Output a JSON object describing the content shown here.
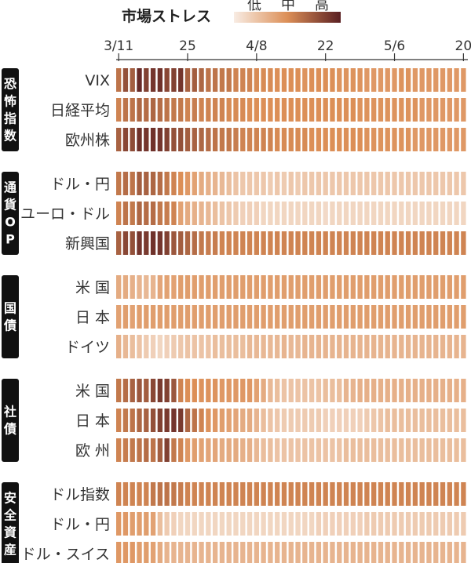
{
  "chart_data": {
    "type": "heatmap",
    "legend": {
      "title": "市場ストレス",
      "labels": [
        "低",
        "中",
        "高"
      ],
      "colors": [
        "#f8ece3",
        "#dc8f57",
        "#5a1f22"
      ]
    },
    "x_ticks": [
      {
        "label": "3/11",
        "index": 0
      },
      {
        "label": "25",
        "index": 10
      },
      {
        "label": "4/8",
        "index": 20
      },
      {
        "label": "22",
        "index": 30
      },
      {
        "label": "5/6",
        "index": 40
      },
      {
        "label": "20",
        "index": 50
      }
    ],
    "days": 51,
    "value_scale": "0 = 低, 0.5 = 中, 1 = 高 (estimated)",
    "groups": [
      {
        "label": "恐怖指数",
        "rows": [
          {
            "label": "VIX",
            "values": [
              0.62,
              0.78,
              0.72,
              0.95,
              0.85,
              0.9,
              0.92,
              0.82,
              0.85,
              0.9,
              0.7,
              0.72,
              0.68,
              0.62,
              0.62,
              0.6,
              0.6,
              0.55,
              0.55,
              0.55,
              0.52,
              0.52,
              0.52,
              0.5,
              0.5,
              0.5,
              0.5,
              0.48,
              0.5,
              0.5,
              0.5,
              0.5,
              0.48,
              0.48,
              0.48,
              0.48,
              0.45,
              0.45,
              0.45,
              0.45,
              0.45,
              0.48,
              0.48,
              0.45,
              0.45,
              0.45,
              0.45,
              0.45,
              0.45,
              0.45,
              0.45
            ]
          },
          {
            "label": "日経平均",
            "values": [
              0.55,
              0.62,
              0.62,
              0.68,
              0.65,
              0.68,
              0.65,
              0.62,
              0.6,
              0.6,
              0.55,
              0.58,
              0.55,
              0.55,
              0.55,
              0.55,
              0.52,
              0.52,
              0.52,
              0.5,
              0.5,
              0.5,
              0.5,
              0.5,
              0.5,
              0.5,
              0.5,
              0.5,
              0.5,
              0.5,
              0.5,
              0.5,
              0.5,
              0.5,
              0.5,
              0.48,
              0.48,
              0.48,
              0.48,
              0.48,
              0.48,
              0.48,
              0.48,
              0.48,
              0.45,
              0.45,
              0.45,
              0.45,
              0.45,
              0.45,
              0.45
            ]
          },
          {
            "label": "欧州株",
            "values": [
              0.7,
              0.82,
              0.8,
              0.92,
              0.9,
              0.92,
              0.9,
              0.85,
              0.78,
              0.78,
              0.72,
              0.7,
              0.68,
              0.65,
              0.62,
              0.6,
              0.6,
              0.58,
              0.55,
              0.55,
              0.55,
              0.55,
              0.55,
              0.52,
              0.52,
              0.52,
              0.52,
              0.52,
              0.5,
              0.5,
              0.5,
              0.5,
              0.5,
              0.5,
              0.5,
              0.5,
              0.48,
              0.48,
              0.48,
              0.48,
              0.48,
              0.48,
              0.48,
              0.45,
              0.45,
              0.45,
              0.45,
              0.45,
              0.45,
              0.45,
              0.45
            ]
          }
        ]
      },
      {
        "label": "通貨OP",
        "rows": [
          {
            "label": "ドル・円",
            "values": [
              0.6,
              0.65,
              0.62,
              0.72,
              0.7,
              0.68,
              0.65,
              0.6,
              0.55,
              0.5,
              0.45,
              0.4,
              0.35,
              0.32,
              0.3,
              0.28,
              0.25,
              0.22,
              0.2,
              0.2,
              0.2,
              0.2,
              0.18,
              0.2,
              0.18,
              0.2,
              0.18,
              0.2,
              0.2,
              0.2,
              0.2,
              0.2,
              0.2,
              0.2,
              0.2,
              0.2,
              0.2,
              0.2,
              0.2,
              0.2,
              0.2,
              0.2,
              0.2,
              0.2,
              0.2,
              0.2,
              0.2,
              0.2,
              0.2,
              0.2,
              0.2
            ]
          },
          {
            "label": "ユーロ・ドル",
            "values": [
              0.55,
              0.62,
              0.6,
              0.68,
              0.65,
              0.65,
              0.6,
              0.58,
              0.55,
              0.4,
              0.35,
              0.32,
              0.3,
              0.28,
              0.25,
              0.22,
              0.2,
              0.18,
              0.15,
              0.15,
              0.15,
              0.12,
              0.12,
              0.12,
              0.12,
              0.12,
              0.12,
              0.12,
              0.12,
              0.12,
              0.1,
              0.12,
              0.12,
              0.12,
              0.12,
              0.12,
              0.12,
              0.12,
              0.12,
              0.12,
              0.12,
              0.12,
              0.12,
              0.12,
              0.12,
              0.12,
              0.12,
              0.12,
              0.12,
              0.12,
              0.12
            ]
          },
          {
            "label": "新興国",
            "values": [
              0.7,
              0.82,
              0.78,
              0.9,
              0.88,
              0.92,
              0.9,
              0.85,
              0.75,
              0.72,
              0.68,
              0.65,
              0.6,
              0.58,
              0.58,
              0.55,
              0.55,
              0.55,
              0.55,
              0.55,
              0.55,
              0.55,
              0.55,
              0.55,
              0.55,
              0.55,
              0.55,
              0.55,
              0.55,
              0.55,
              0.55,
              0.55,
              0.55,
              0.55,
              0.55,
              0.55,
              0.55,
              0.55,
              0.55,
              0.55,
              0.55,
              0.55,
              0.55,
              0.55,
              0.55,
              0.55,
              0.55,
              0.55,
              0.55,
              0.55,
              0.55
            ]
          }
        ]
      },
      {
        "label": "国債",
        "rows": [
          {
            "label": "米 国",
            "values": [
              0.35,
              0.35,
              0.32,
              0.3,
              0.28,
              0.3,
              0.38,
              0.4,
              0.4,
              0.42,
              0.42,
              0.42,
              0.42,
              0.42,
              0.42,
              0.42,
              0.42,
              0.42,
              0.42,
              0.42,
              0.42,
              0.42,
              0.42,
              0.42,
              0.42,
              0.42,
              0.42,
              0.42,
              0.42,
              0.42,
              0.42,
              0.42,
              0.42,
              0.42,
              0.42,
              0.42,
              0.42,
              0.42,
              0.42,
              0.42,
              0.42,
              0.42,
              0.42,
              0.42,
              0.42,
              0.42,
              0.42,
              0.42,
              0.42,
              0.42,
              0.42
            ]
          },
          {
            "label": "日 本",
            "values": [
              0.4,
              0.42,
              0.4,
              0.42,
              0.42,
              0.42,
              0.42,
              0.42,
              0.42,
              0.42,
              0.42,
              0.42,
              0.42,
              0.42,
              0.42,
              0.42,
              0.42,
              0.42,
              0.42,
              0.42,
              0.42,
              0.42,
              0.42,
              0.42,
              0.42,
              0.42,
              0.42,
              0.42,
              0.42,
              0.42,
              0.42,
              0.42,
              0.42,
              0.42,
              0.42,
              0.42,
              0.42,
              0.42,
              0.42,
              0.42,
              0.42,
              0.42,
              0.42,
              0.42,
              0.42,
              0.42,
              0.42,
              0.42,
              0.42,
              0.42,
              0.42
            ]
          },
          {
            "label": "ドイツ",
            "values": [
              0.32,
              0.28,
              0.25,
              0.22,
              0.18,
              0.15,
              0.12,
              0.15,
              0.18,
              0.2,
              0.22,
              0.22,
              0.22,
              0.22,
              0.25,
              0.25,
              0.25,
              0.25,
              0.25,
              0.28,
              0.28,
              0.28,
              0.28,
              0.28,
              0.3,
              0.28,
              0.28,
              0.3,
              0.3,
              0.3,
              0.3,
              0.3,
              0.3,
              0.3,
              0.3,
              0.3,
              0.3,
              0.3,
              0.3,
              0.3,
              0.3,
              0.3,
              0.3,
              0.3,
              0.3,
              0.3,
              0.3,
              0.3,
              0.3,
              0.3,
              0.3
            ]
          }
        ]
      },
      {
        "label": "社債",
        "rows": [
          {
            "label": "米 国",
            "values": [
              0.6,
              0.65,
              0.7,
              0.75,
              0.72,
              0.82,
              0.88,
              0.85,
              0.75,
              0.55,
              0.5,
              0.5,
              0.48,
              0.48,
              0.48,
              0.45,
              0.45,
              0.45,
              0.45,
              0.45,
              0.4,
              0.35,
              0.28,
              0.25,
              0.22,
              0.22,
              0.22,
              0.22,
              0.22,
              0.22,
              0.25,
              0.25,
              0.25,
              0.3,
              0.3,
              0.32,
              0.32,
              0.32,
              0.32,
              0.32,
              0.32,
              0.32,
              0.32,
              0.32,
              0.32,
              0.32,
              0.32,
              0.32,
              0.32,
              0.32,
              0.32
            ]
          },
          {
            "label": "日 本",
            "values": [
              0.55,
              0.6,
              0.62,
              0.68,
              0.7,
              0.78,
              0.85,
              0.88,
              0.9,
              0.88,
              0.68,
              0.62,
              0.55,
              0.48,
              0.45,
              0.42,
              0.4,
              0.38,
              0.35,
              0.35,
              0.3,
              0.25,
              0.22,
              0.2,
              0.18,
              0.18,
              0.18,
              0.18,
              0.18,
              0.18,
              0.15,
              0.15,
              0.15,
              0.15,
              0.15,
              0.15,
              0.18,
              0.2,
              0.22,
              0.25,
              0.25,
              0.25,
              0.25,
              0.25,
              0.25,
              0.25,
              0.25,
              0.25,
              0.25,
              0.25,
              0.25
            ]
          },
          {
            "label": "欧 州",
            "values": [
              0.55,
              0.58,
              0.6,
              0.62,
              0.65,
              0.62,
              0.72,
              0.85,
              0.6,
              0.55,
              0.45,
              0.42,
              0.4,
              0.38,
              0.38,
              0.35,
              0.35,
              0.35,
              0.32,
              0.32,
              0.28,
              0.25,
              0.25,
              0.22,
              0.22,
              0.22,
              0.22,
              0.22,
              0.22,
              0.22,
              0.22,
              0.22,
              0.22,
              0.25,
              0.25,
              0.25,
              0.25,
              0.25,
              0.25,
              0.25,
              0.25,
              0.25,
              0.25,
              0.25,
              0.25,
              0.25,
              0.25,
              0.25,
              0.25,
              0.25,
              0.25
            ]
          }
        ]
      },
      {
        "label": "安全資産",
        "rows": [
          {
            "label": "ドル指数",
            "values": [
              0.55,
              0.55,
              0.55,
              0.55,
              0.55,
              0.6,
              0.62,
              0.62,
              0.6,
              0.58,
              0.55,
              0.55,
              0.55,
              0.55,
              0.55,
              0.55,
              0.55,
              0.55,
              0.55,
              0.55,
              0.55,
              0.55,
              0.55,
              0.55,
              0.55,
              0.55,
              0.55,
              0.55,
              0.55,
              0.55,
              0.55,
              0.55,
              0.55,
              0.55,
              0.55,
              0.55,
              0.55,
              0.55,
              0.55,
              0.55,
              0.55,
              0.55,
              0.55,
              0.55,
              0.55,
              0.55,
              0.55,
              0.55,
              0.55,
              0.55,
              0.55
            ]
          },
          {
            "label": "ドル・円",
            "values": [
              0.45,
              0.45,
              0.42,
              0.42,
              0.42,
              0.4,
              0.25,
              0.18,
              0.15,
              0.12,
              0.12,
              0.12,
              0.12,
              0.12,
              0.12,
              0.12,
              0.12,
              0.12,
              0.12,
              0.12,
              0.12,
              0.12,
              0.12,
              0.12,
              0.12,
              0.12,
              0.12,
              0.12,
              0.12,
              0.15,
              0.15,
              0.15,
              0.15,
              0.15,
              0.15,
              0.15,
              0.18,
              0.18,
              0.18,
              0.18,
              0.18,
              0.18,
              0.18,
              0.18,
              0.18,
              0.18,
              0.18,
              0.18,
              0.18,
              0.18,
              0.18
            ]
          },
          {
            "label": "ドル・スイス",
            "values": [
              0.45,
              0.45,
              0.45,
              0.42,
              0.42,
              0.4,
              0.35,
              0.3,
              0.3,
              0.3,
              0.3,
              0.3,
              0.3,
              0.3,
              0.3,
              0.3,
              0.3,
              0.3,
              0.3,
              0.3,
              0.3,
              0.3,
              0.3,
              0.3,
              0.3,
              0.3,
              0.3,
              0.3,
              0.3,
              0.3,
              0.3,
              0.3,
              0.3,
              0.3,
              0.3,
              0.3,
              0.3,
              0.3,
              0.3,
              0.3,
              0.3,
              0.3,
              0.3,
              0.3,
              0.3,
              0.3,
              0.3,
              0.3,
              0.3,
              0.3,
              0.3
            ]
          }
        ]
      }
    ]
  }
}
